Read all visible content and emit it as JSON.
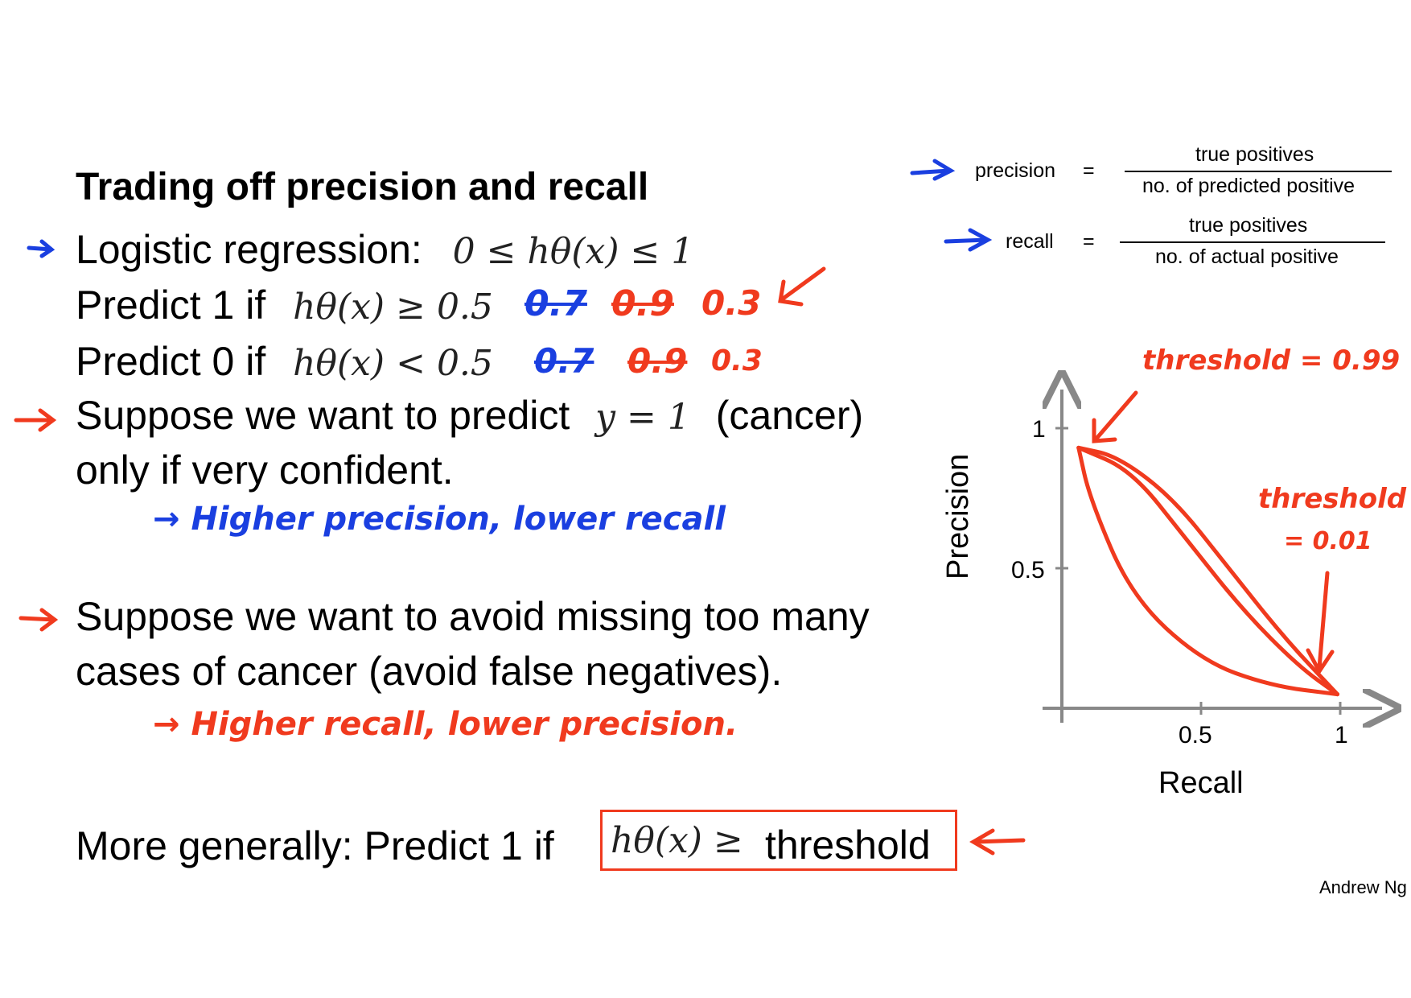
{
  "title": "Trading off precision and recall",
  "line1": {
    "text": "Logistic regression:",
    "math": "0 ≤ hθ(x) ≤ 1"
  },
  "line2": {
    "text": "Predict 1 if",
    "math": "hθ(x) ≥ 0.5",
    "notes": [
      "0.7",
      "0.9",
      "0.3"
    ]
  },
  "line3": {
    "text": "Predict 0 if",
    "math": "hθ(x) < 0.5",
    "notes": [
      "0.7",
      "0.9",
      "0.3"
    ]
  },
  "line4": {
    "text_a": "Suppose we want to predict",
    "math": "y = 1",
    "text_b": "(cancer)",
    "text_c": "only if very confident."
  },
  "note_high_precision": "→ Higher precision, lower recall",
  "line5": {
    "text_a": "Suppose we want to avoid missing too many",
    "text_b": "cases of cancer (avoid false negatives)."
  },
  "note_high_recall": "→ Higher recall, lower precision.",
  "line6": {
    "text": "More generally: Predict 1 if",
    "math": "hθ(x) ≥",
    "word": "threshold"
  },
  "formulas": {
    "precision": {
      "label": "precision",
      "eq": "=",
      "num": "true positives",
      "den": "no. of predicted positive"
    },
    "recall": {
      "label": "recall",
      "eq": "=",
      "num": "true positives",
      "den": "no. of actual positive"
    }
  },
  "annotations": {
    "threshold_high": "threshold = 0.99",
    "threshold_low_a": "threshold",
    "threshold_low_b": "= 0.01"
  },
  "chart_data": {
    "type": "line",
    "xlabel": "Recall",
    "ylabel": "Precision",
    "xticks": [
      "0.5",
      "1"
    ],
    "yticks": [
      "1",
      "0.5"
    ],
    "xlim": [
      0,
      1
    ],
    "ylim": [
      0,
      1
    ],
    "series": [
      {
        "x": [
          0.06,
          0.2,
          0.4,
          0.6,
          0.8,
          0.99
        ],
        "y": [
          0.93,
          0.9,
          0.75,
          0.5,
          0.25,
          0.05
        ]
      },
      {
        "x": [
          0.06,
          0.1,
          0.25,
          0.5,
          0.75,
          0.99
        ],
        "y": [
          0.93,
          0.75,
          0.4,
          0.17,
          0.08,
          0.05
        ]
      },
      {
        "x": [
          0.06,
          0.25,
          0.45,
          0.65,
          0.85,
          0.99
        ],
        "y": [
          0.93,
          0.85,
          0.6,
          0.35,
          0.15,
          0.05
        ]
      }
    ],
    "colors": {
      "axis": "#888888",
      "curve": "#f03a1e"
    }
  },
  "attribution": "Andrew Ng"
}
